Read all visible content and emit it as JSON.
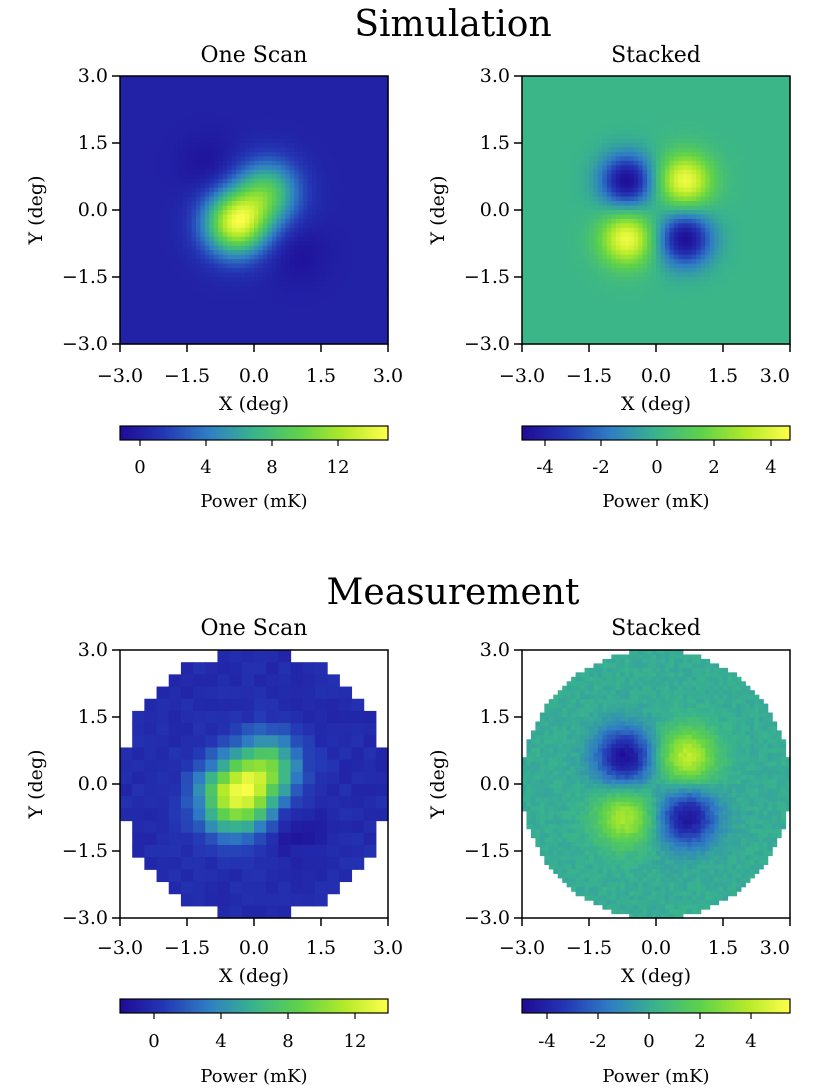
{
  "sections": [
    {
      "title": "Simulation",
      "panels": [
        {
          "title": "One Scan",
          "xlabel": "X (deg)",
          "ylabel": "Y (deg)",
          "xticks": [
            "−3.0",
            "−1.5",
            "0.0",
            "1.5",
            "3.0"
          ],
          "yticks": [
            "3.0",
            "1.5",
            "0.0",
            "−1.5",
            "−3.0"
          ],
          "cbar_label": "Power (mK)",
          "cbar_ticks": [
            "0",
            "4",
            "8",
            "12"
          ]
        },
        {
          "title": "Stacked",
          "xlabel": "X (deg)",
          "ylabel": "Y (deg)",
          "xticks": [
            "−3.0",
            "−1.5",
            "0.0",
            "1.5",
            "3.0"
          ],
          "yticks": [
            "3.0",
            "1.5",
            "0.0",
            "−1.5",
            "−3.0"
          ],
          "cbar_label": "Power (mK)",
          "cbar_ticks": [
            "-4",
            "-2",
            "0",
            "2",
            "4"
          ]
        }
      ]
    },
    {
      "title": "Measurement",
      "panels": [
        {
          "title": "One Scan",
          "xlabel": "X (deg)",
          "ylabel": "Y (deg)",
          "xticks": [
            "−3.0",
            "−1.5",
            "0.0",
            "1.5",
            "3.0"
          ],
          "yticks": [
            "3.0",
            "1.5",
            "0.0",
            "−1.5",
            "−3.0"
          ],
          "cbar_label": "Power (mK)",
          "cbar_ticks": [
            "0",
            "4",
            "8",
            "12"
          ]
        },
        {
          "title": "Stacked",
          "xlabel": "X (deg)",
          "ylabel": "Y (deg)",
          "xticks": [
            "−3.0",
            "−1.5",
            "0.0",
            "1.5",
            "3.0"
          ],
          "yticks": [
            "3.0",
            "1.5",
            "0.0",
            "−1.5",
            "−3.0"
          ],
          "cbar_label": "Power (mK)",
          "cbar_ticks": [
            "-4",
            "-2",
            "0",
            "2",
            "4"
          ]
        }
      ]
    }
  ],
  "colors": {
    "colormap": [
      "#1f0a96",
      "#2436b4",
      "#2f7ec4",
      "#39b48c",
      "#5fd24a",
      "#b4ea2a",
      "#ffff4a"
    ],
    "axis": "#000000",
    "background": "#ffffff"
  },
  "chart_data": [
    {
      "type": "heatmap",
      "title": "One Scan",
      "section": "Simulation",
      "xlabel": "X (deg)",
      "ylabel": "Y (deg)",
      "xlim": [
        -3.0,
        3.0
      ],
      "ylim": [
        -3.0,
        3.0
      ],
      "colorbar": {
        "label": "Power (mK)",
        "range": [
          -1.5,
          15
        ],
        "ticks": [
          0,
          4,
          8,
          12
        ]
      },
      "peak": {
        "x": -0.35,
        "y": -0.3,
        "value": 13.5
      },
      "features": [
        {
          "x": -0.4,
          "y": -0.3,
          "value": 13.5,
          "sigma": 0.5
        },
        {
          "x": 0.3,
          "y": 0.4,
          "value": 8.0,
          "sigma": 0.5
        },
        {
          "x": -1.0,
          "y": 1.0,
          "value": -1.0,
          "sigma": 0.45
        },
        {
          "x": 1.0,
          "y": -1.0,
          "value": -1.0,
          "sigma": 0.45
        }
      ]
    },
    {
      "type": "heatmap",
      "title": "Stacked",
      "section": "Simulation",
      "xlabel": "X (deg)",
      "ylabel": "Y (deg)",
      "xlim": [
        -3.0,
        3.0
      ],
      "ylim": [
        -3.0,
        3.0
      ],
      "colorbar": {
        "label": "Power (mK)",
        "range": [
          -4.8,
          4.6
        ],
        "ticks": [
          -4,
          -2,
          0,
          2,
          4
        ]
      },
      "features": [
        {
          "x": -0.65,
          "y": 0.65,
          "value": -4.7,
          "sigma": 0.42
        },
        {
          "x": 0.65,
          "y": 0.65,
          "value": 4.3,
          "sigma": 0.42
        },
        {
          "x": -0.65,
          "y": -0.65,
          "value": 4.3,
          "sigma": 0.42
        },
        {
          "x": 0.65,
          "y": -0.65,
          "value": -4.7,
          "sigma": 0.42
        }
      ]
    },
    {
      "type": "heatmap",
      "title": "One Scan",
      "section": "Measurement",
      "xlabel": "X (deg)",
      "ylabel": "Y (deg)",
      "xlim": [
        -3.0,
        3.0
      ],
      "ylim": [
        -3.0,
        3.0
      ],
      "colorbar": {
        "label": "Power (mK)",
        "range": [
          -2,
          14
        ],
        "ticks": [
          0,
          4,
          8,
          12
        ]
      },
      "pixelated": true,
      "circular_mask_radius": 3.0,
      "features": [
        {
          "x": -0.4,
          "y": -0.3,
          "value": 12.5,
          "sigma": 0.55
        },
        {
          "x": 0.3,
          "y": 0.4,
          "value": 7.5,
          "sigma": 0.5
        },
        {
          "x": 0.9,
          "y": -1.0,
          "value": -1.5,
          "sigma": 0.4
        }
      ]
    },
    {
      "type": "heatmap",
      "title": "Stacked",
      "section": "Measurement",
      "xlabel": "X (deg)",
      "ylabel": "Y (deg)",
      "xlim": [
        -3.0,
        3.0
      ],
      "ylim": [
        -3.0,
        3.0
      ],
      "colorbar": {
        "label": "Power (mK)",
        "range": [
          -5,
          5.5
        ],
        "ticks": [
          -4,
          -2,
          0,
          2,
          4
        ]
      },
      "circular_mask_radius": 3.0,
      "features": [
        {
          "x": -0.7,
          "y": 0.6,
          "value": -4.8,
          "sigma": 0.45
        },
        {
          "x": 0.7,
          "y": 0.6,
          "value": 4.0,
          "sigma": 0.45
        },
        {
          "x": -0.7,
          "y": -0.75,
          "value": 3.5,
          "sigma": 0.45
        },
        {
          "x": 0.7,
          "y": -0.75,
          "value": -4.5,
          "sigma": 0.45
        }
      ]
    }
  ]
}
